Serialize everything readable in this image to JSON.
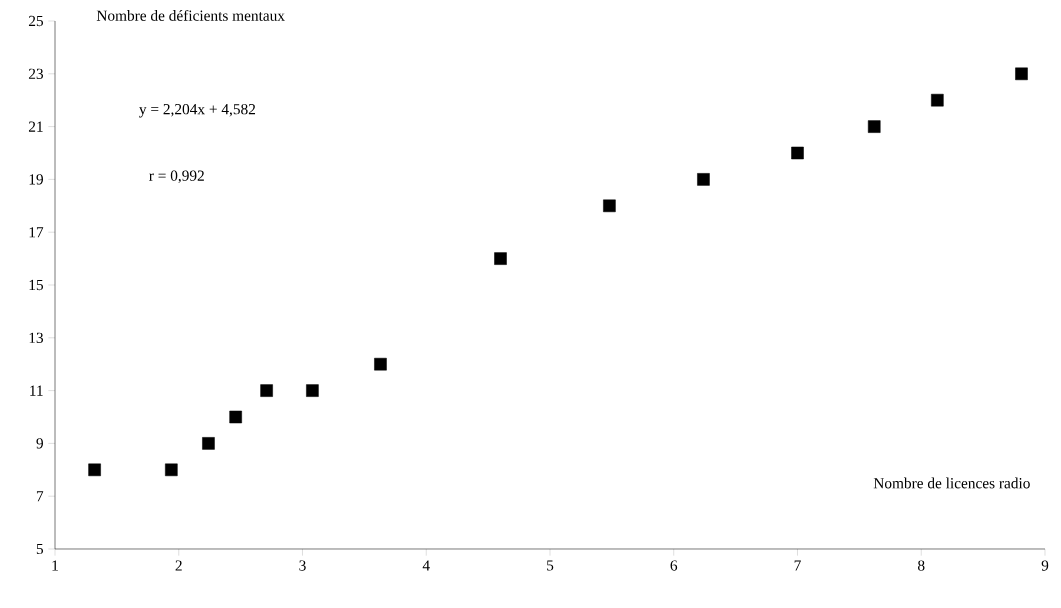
{
  "chart_data": {
    "type": "scatter",
    "xlabel": "Nombre de licences radio",
    "ylabel": "Nombre de déficients mentaux",
    "annotations": [
      "y = 2,204x + 4,582",
      "r = 0,992"
    ],
    "x": [
      1.32,
      1.94,
      2.24,
      2.46,
      2.71,
      3.08,
      3.63,
      4.6,
      5.48,
      6.24,
      7.0,
      7.62,
      8.13,
      8.81
    ],
    "values": [
      8,
      8,
      9,
      10,
      11,
      11,
      12,
      16,
      18,
      19,
      20,
      21,
      22,
      23
    ],
    "color": "#000000",
    "marker": "square",
    "xlim": [
      1,
      9
    ],
    "xticks": [
      1,
      2,
      3,
      4,
      5,
      6,
      7,
      8,
      9
    ],
    "ylim": [
      5,
      25
    ],
    "yticks": [
      5,
      7,
      9,
      11,
      13,
      15,
      17,
      19,
      21,
      23,
      25
    ]
  }
}
